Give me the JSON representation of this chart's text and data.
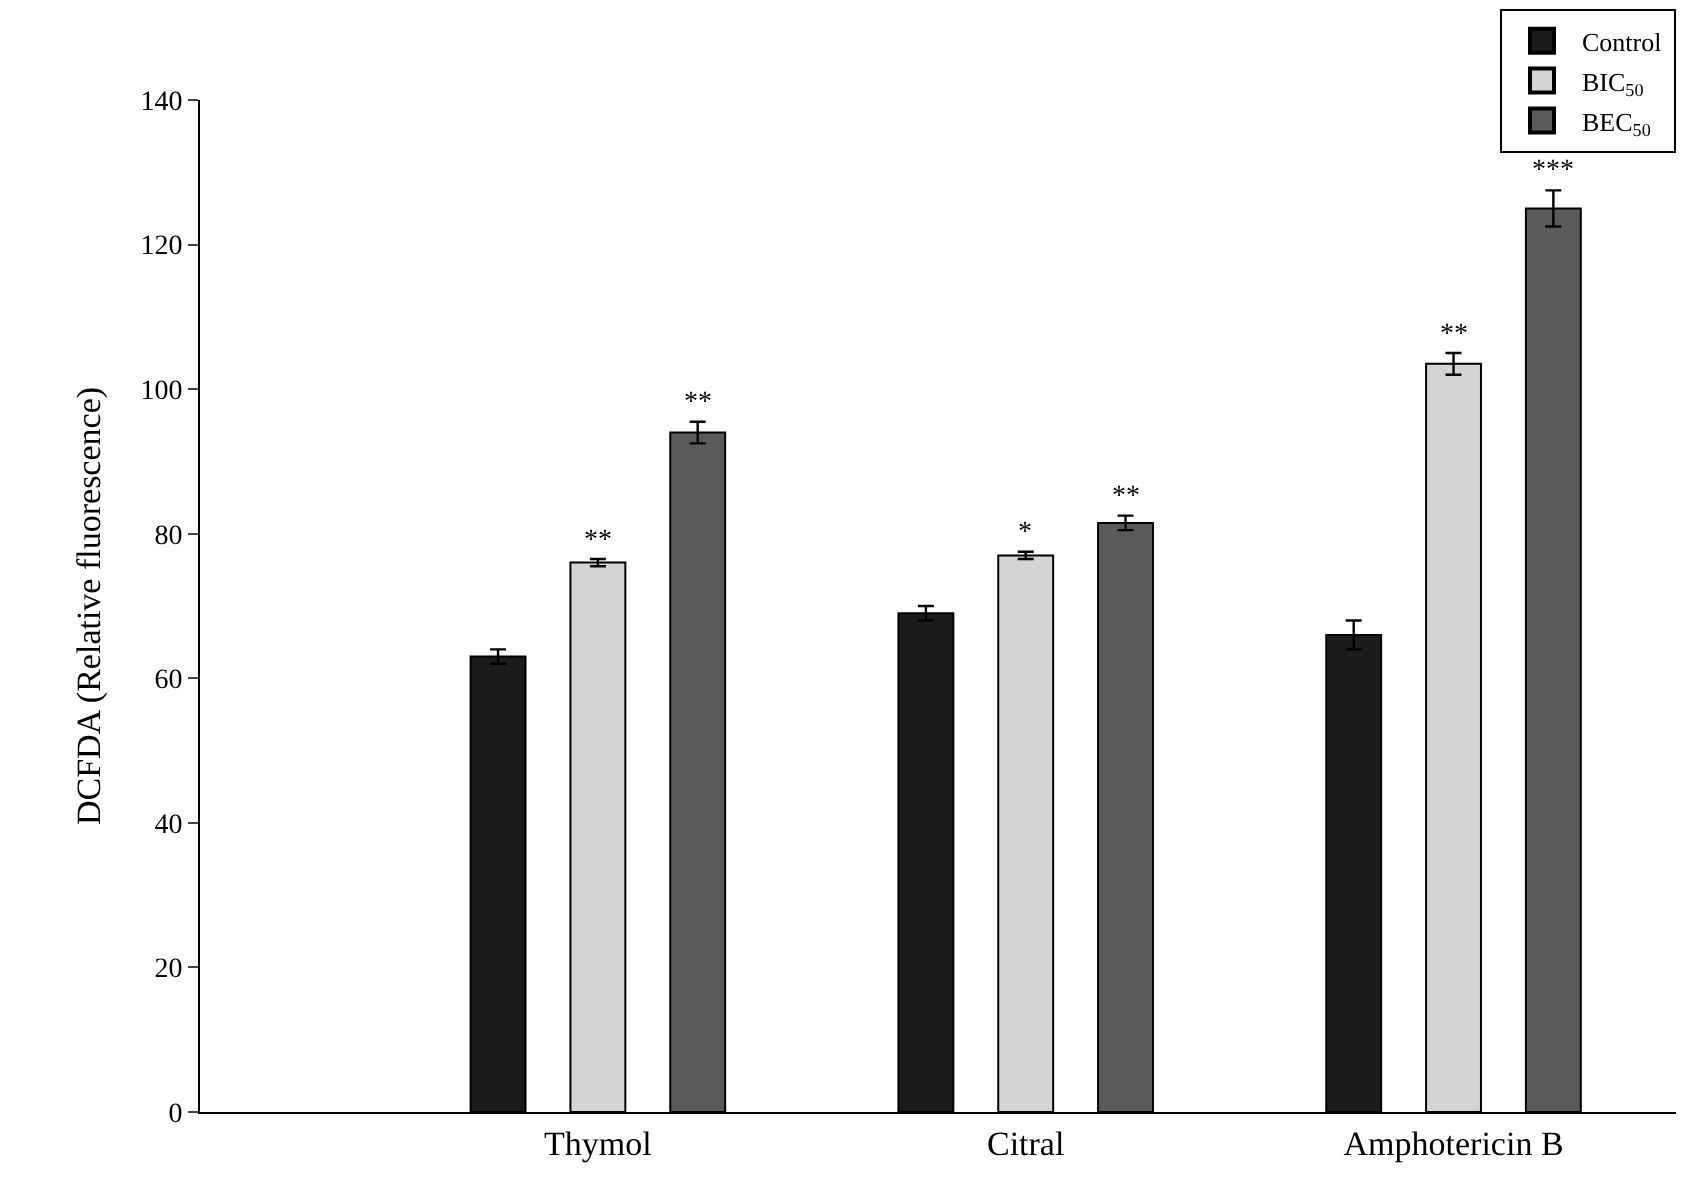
{
  "chart_data": {
    "type": "bar",
    "ylabel": "DCFDA (Relative fluorescence)",
    "categories": [
      "Thymol",
      "Citral",
      "Amphotericin B"
    ],
    "series": [
      {
        "name": "Control",
        "color": "#1c1c1c",
        "values": [
          63,
          69,
          66
        ],
        "errors": [
          1,
          1,
          2
        ]
      },
      {
        "name": "BIC$_{50}$",
        "color": "#d4d4d4",
        "values": [
          76,
          77,
          103.5
        ],
        "errors": [
          0.5,
          0.5,
          1.5
        ]
      },
      {
        "name": "BEC$_{50}$",
        "color": "#5a5a5a",
        "values": [
          94,
          81.5,
          125
        ],
        "errors": [
          1.5,
          1,
          2.5
        ]
      }
    ],
    "ylim": [
      0,
      140
    ],
    "yticks": [
      0,
      20,
      40,
      60,
      80,
      100,
      120,
      140
    ],
    "grid": false,
    "legend": "top right",
    "annotations": [
      {
        "text": "**",
        "y": 76
      },
      {
        "text": "**",
        "y": 94
      },
      {
        "text": "*",
        "y": 77
      },
      {
        "text": "**",
        "y": 81.5
      },
      {
        "text": "**",
        "y": 103.5
      },
      {
        "text": "***",
        "y": 125
      }
    ]
  }
}
